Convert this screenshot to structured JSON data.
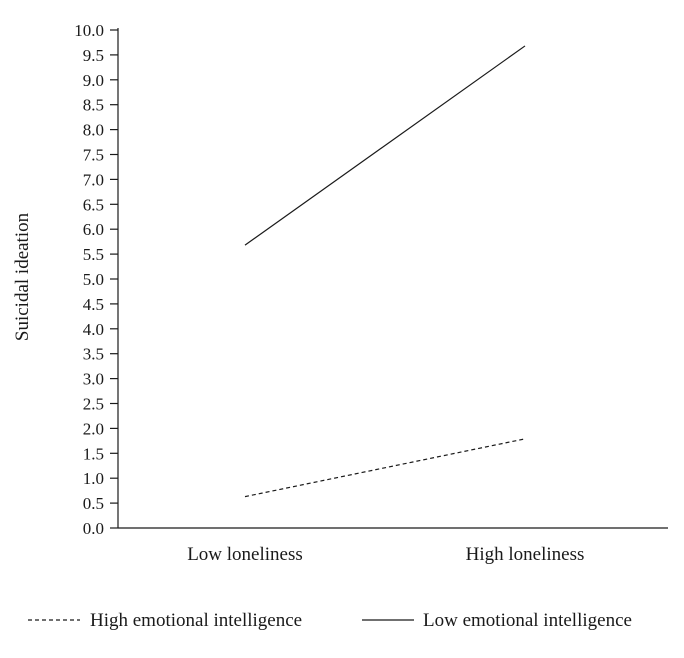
{
  "chart_data": {
    "type": "line",
    "title": "",
    "xlabel": "",
    "ylabel": "Suicidal ideation",
    "categories": [
      "Low loneliness",
      "High loneliness"
    ],
    "ylim": [
      0,
      10
    ],
    "yticks": [
      "0.0",
      "0.5",
      "1.0",
      "1.5",
      "2.0",
      "2.5",
      "3.0",
      "3.5",
      "4.0",
      "4.5",
      "5.0",
      "5.5",
      "6.0",
      "6.5",
      "7.0",
      "7.5",
      "8.0",
      "8.5",
      "9.0",
      "9.5",
      "10.0"
    ],
    "grid": false,
    "legend_position": "bottom",
    "series": [
      {
        "name": "High emotional intelligence",
        "values": [
          0.63,
          1.79
        ],
        "line_style": "dashed",
        "color": "#1a1a1a"
      },
      {
        "name": "Low emotional intelligence",
        "values": [
          5.68,
          9.68
        ],
        "line_style": "solid",
        "color": "#1a1a1a"
      }
    ]
  }
}
